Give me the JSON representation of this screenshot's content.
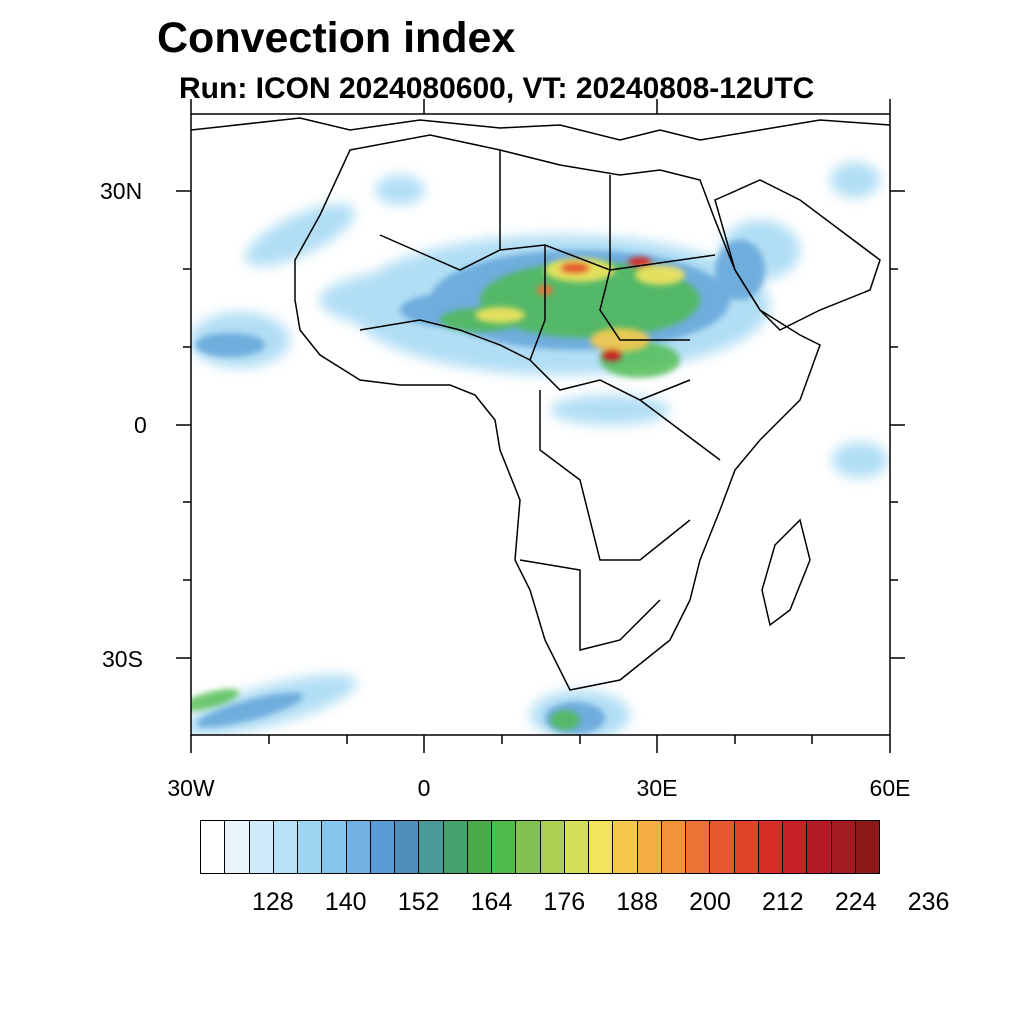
{
  "title": "Convection index",
  "subtitle": "Run: ICON 2024080600,  VT: 20240808-12UTC",
  "map": {
    "lon_range": [
      -30,
      60
    ],
    "lat_range": [
      -40,
      40
    ],
    "lat_labels": [
      "30N",
      "0",
      "30S"
    ],
    "lon_labels": [
      "30W",
      "0",
      "30E",
      "60E"
    ]
  },
  "colorbar": {
    "colors": [
      "#ffffff",
      "#e8f5fc",
      "#cfeaf8",
      "#b6e1f6",
      "#9ed6f2",
      "#87c6ec",
      "#72b2e2",
      "#5a9dd6",
      "#4d8fb8",
      "#4a9a98",
      "#47a36e",
      "#4caa4a",
      "#4ebb4b",
      "#82c252",
      "#aacf51",
      "#d2df58",
      "#f2e45d",
      "#f6c94e",
      "#f5ad45",
      "#f3923b",
      "#ed7334",
      "#e7582d",
      "#e04328",
      "#d52e27",
      "#c72228",
      "#b41b25",
      "#a31b21",
      "#8d1a1b"
    ],
    "labels": [
      "128",
      "140",
      "152",
      "164",
      "176",
      "188",
      "200",
      "212",
      "224",
      "236"
    ]
  }
}
